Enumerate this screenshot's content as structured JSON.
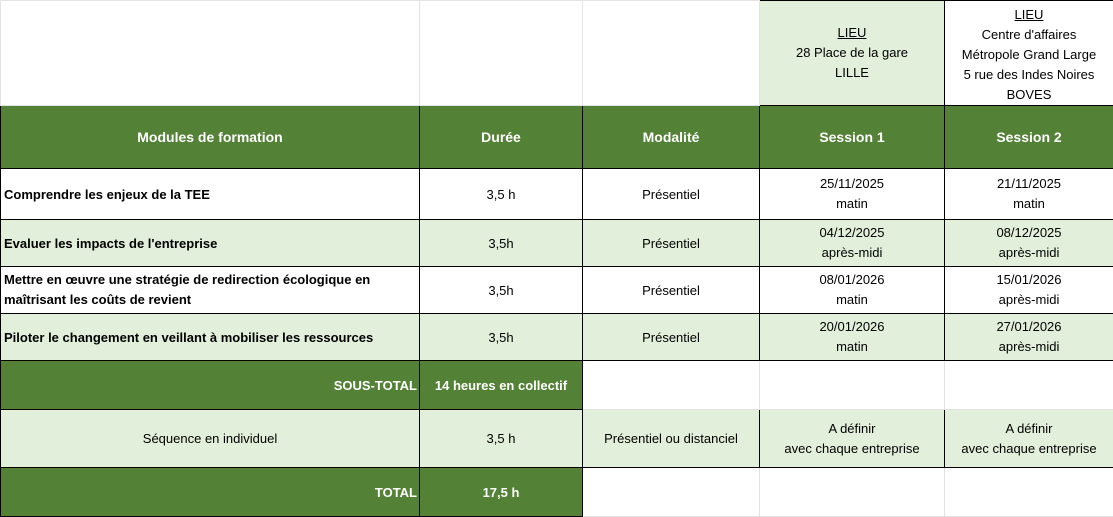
{
  "locations": {
    "lille": {
      "heading": "LIEU",
      "lines": [
        "28 Place de la gare",
        "LILLE"
      ]
    },
    "boves": {
      "heading": "LIEU",
      "lines": [
        "Centre d'affaires",
        "Métropole Grand Large",
        "5 rue des Indes Noires",
        "BOVES"
      ]
    }
  },
  "headers": {
    "module": "Modules de formation",
    "duration": "Durée",
    "modality": "Modalité",
    "session1": "Session 1",
    "session2": "Session 2"
  },
  "modules": [
    {
      "name": "Comprendre les enjeux de la TEE",
      "duration": "3,5 h",
      "modality": "Présentiel",
      "session1": {
        "date": "25/11/2025",
        "period": "matin"
      },
      "session2": {
        "date": "21/11/2025",
        "period": "matin"
      }
    },
    {
      "name": "Evaluer les impacts de l'entreprise",
      "duration": "3,5h",
      "modality": "Présentiel",
      "session1": {
        "date": "04/12/2025",
        "period": "après-midi"
      },
      "session2": {
        "date": "08/12/2025",
        "period": "après-midi"
      }
    },
    {
      "name_lines": [
        "Mettre en œuvre une stratégie de redirection écologique en",
        "maîtrisant les coûts de revient"
      ],
      "duration": "3,5h",
      "modality": "Présentiel",
      "session1": {
        "date": "08/01/2026",
        "period": "matin"
      },
      "session2": {
        "date": "15/01/2026",
        "period": "après-midi"
      }
    },
    {
      "name": "Piloter le changement en veillant à mobiliser les ressources",
      "duration": "3,5h",
      "modality": "Présentiel",
      "session1": {
        "date": "20/01/2026",
        "period": "matin"
      },
      "session2": {
        "date": "27/01/2026",
        "period": "après-midi"
      }
    }
  ],
  "subtotal": {
    "label": "SOUS-TOTAL",
    "value": "14 heures en collectif"
  },
  "individual": {
    "name": "Séquence en individuel",
    "duration": "3,5 h",
    "modality": "Présentiel ou distanciel",
    "session1": {
      "line1": "A définir",
      "line2": "avec chaque entreprise"
    },
    "session2": {
      "line1": "A définir",
      "line2": "avec chaque entreprise"
    }
  },
  "total": {
    "label": "TOTAL",
    "value": "17,5 h"
  },
  "colors": {
    "header_green": "#538135",
    "light_green": "#e2efda"
  }
}
